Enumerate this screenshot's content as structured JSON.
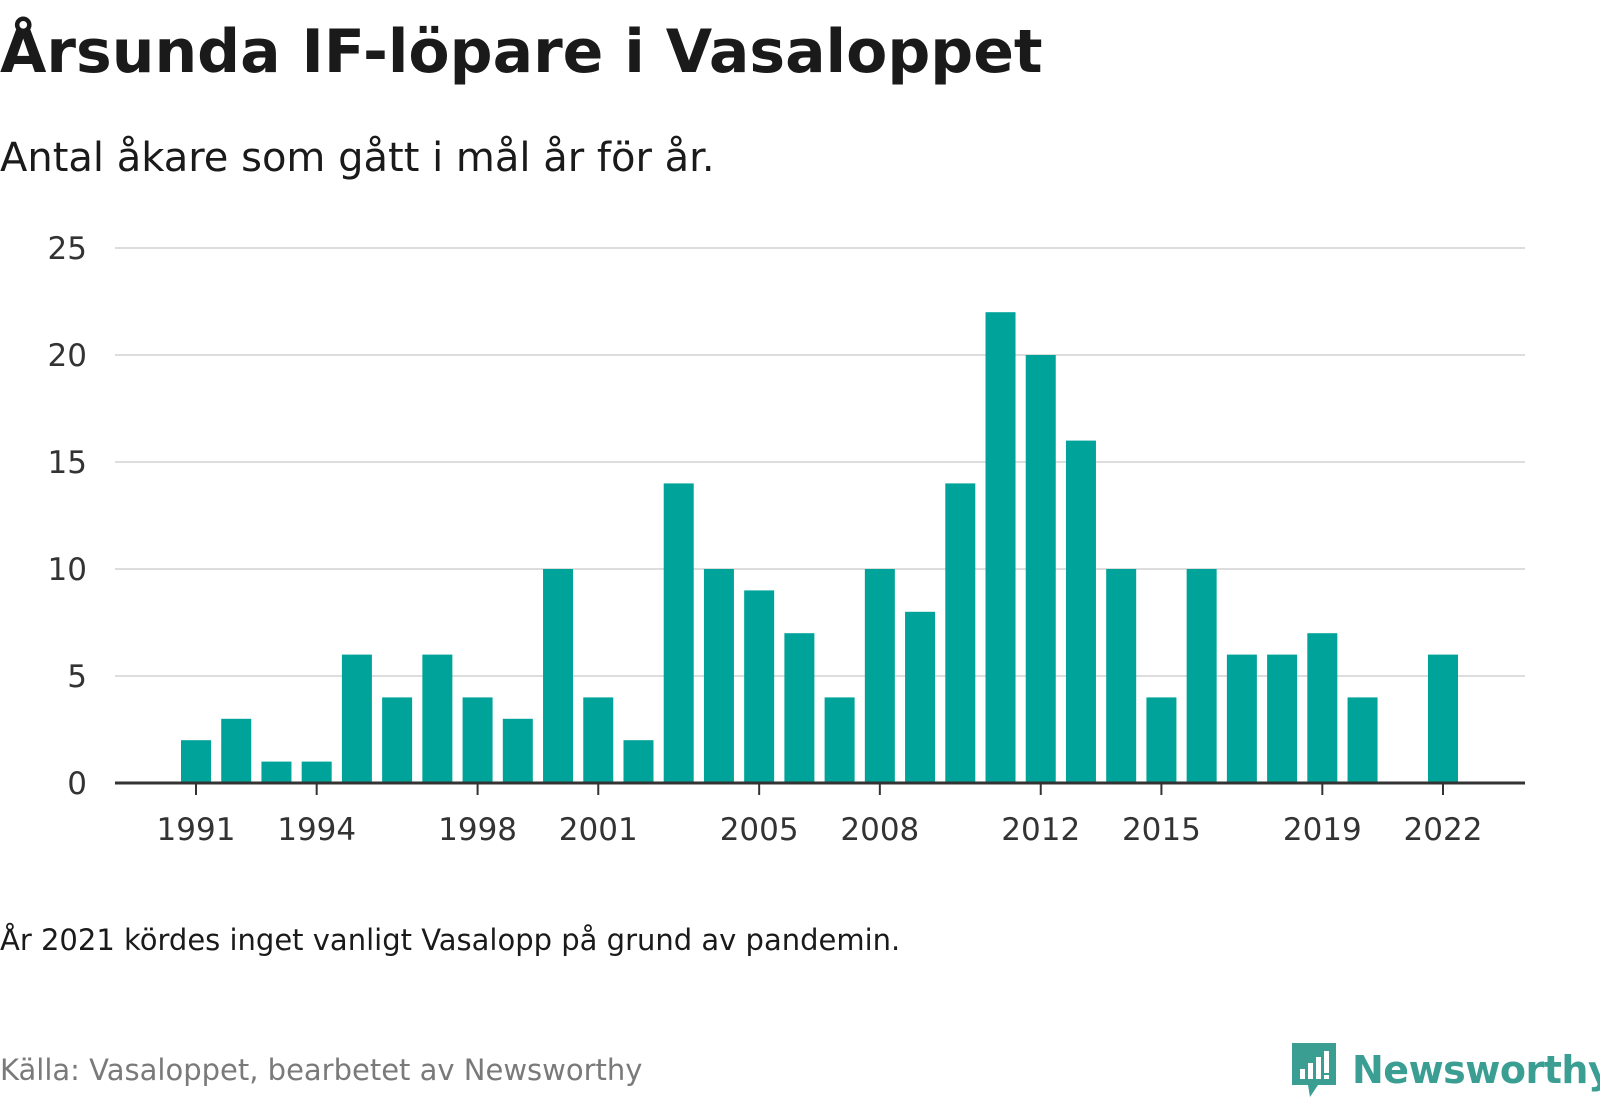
{
  "title": "Årsunda IF-löpare i Vasaloppet",
  "subtitle": "Antal åkare som gått i mål år för år.",
  "note": "År 2021 kördes inget vanligt Vasalopp på grund av pandemin.",
  "source": "Källa: Vasaloppet, bearbetet av Newsworthy",
  "brand": {
    "name": "Newsworthy",
    "icon": "newsworthy-logo-icon",
    "color": "#3a9e93"
  },
  "colors": {
    "bar": "#00a39a",
    "grid": "#dddddd",
    "axis": "#333333",
    "text": "#333333"
  },
  "chart_data": {
    "type": "bar",
    "x": [
      1991,
      1992,
      1993,
      1994,
      1995,
      1996,
      1997,
      1998,
      1999,
      2000,
      2001,
      2002,
      2003,
      2004,
      2005,
      2006,
      2007,
      2008,
      2009,
      2010,
      2011,
      2012,
      2013,
      2014,
      2015,
      2016,
      2017,
      2018,
      2019,
      2020,
      2021,
      2022
    ],
    "values": [
      2,
      3,
      1,
      1,
      6,
      4,
      6,
      4,
      3,
      10,
      4,
      2,
      14,
      10,
      9,
      7,
      4,
      10,
      8,
      14,
      22,
      20,
      16,
      10,
      4,
      10,
      6,
      6,
      7,
      4,
      null,
      6
    ],
    "x_ticks": [
      "1991",
      "1994",
      "1998",
      "2001",
      "2005",
      "2008",
      "2012",
      "2015",
      "2019",
      "2022"
    ],
    "y_ticks": [
      "0",
      "5",
      "10",
      "15",
      "20",
      "25"
    ],
    "ylim": [
      0,
      25
    ],
    "grid": true,
    "legend": "none"
  }
}
